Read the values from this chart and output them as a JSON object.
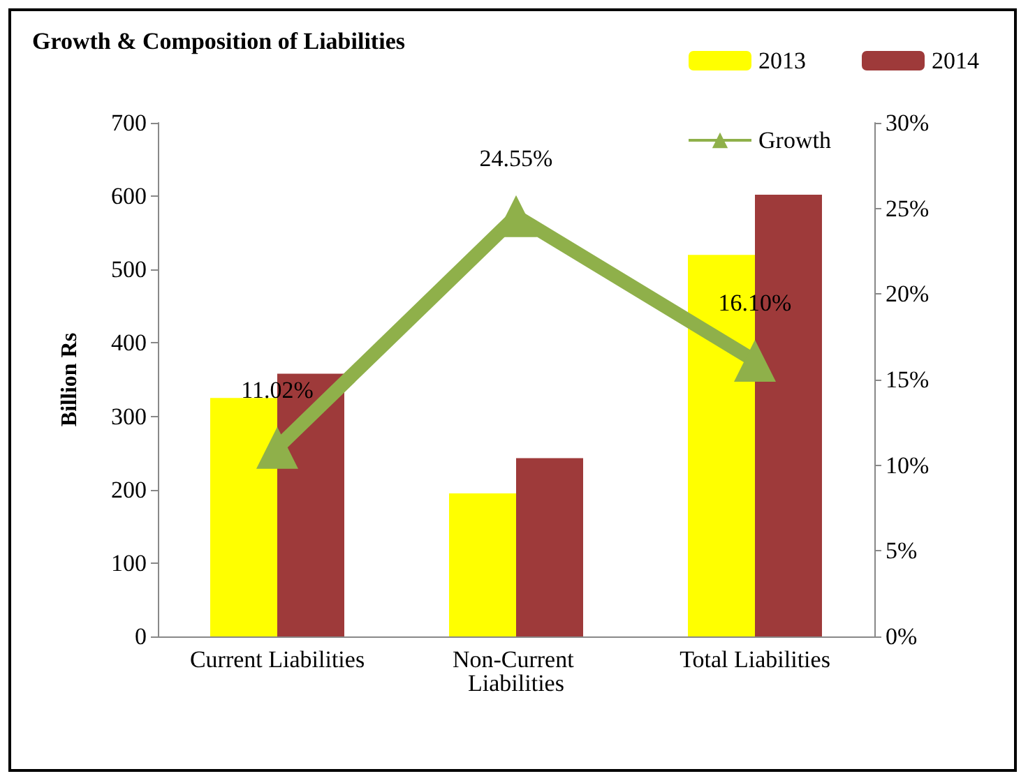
{
  "chart_data": {
    "type": "bar",
    "title": "Growth & Composition of Liabilities",
    "ylabel": "Billion Rs",
    "categories": [
      "Current Liabilities",
      "Non-Current Liabilities",
      "Total Liabilities"
    ],
    "series": [
      {
        "name": "2013",
        "color": "#ffff00",
        "values": [
          325,
          195,
          520
        ]
      },
      {
        "name": "2014",
        "color": "#9e3a3a",
        "values": [
          358,
          243,
          602
        ]
      },
      {
        "name": "Growth",
        "type": "line",
        "axis": "y2",
        "color": "#8fb04a",
        "marker": "triangle",
        "values": [
          11.02,
          24.55,
          16.1
        ],
        "value_labels": [
          "11.02%",
          "24.55%",
          "16.10%"
        ]
      }
    ],
    "ylim": [
      0,
      700
    ],
    "yticks": [
      0,
      100,
      200,
      300,
      400,
      500,
      600,
      700
    ],
    "y2lim": [
      0,
      30
    ],
    "y2ticks": [
      {
        "value": 0,
        "label": "0%"
      },
      {
        "value": 5,
        "label": "5%"
      },
      {
        "value": 10,
        "label": "10%"
      },
      {
        "value": 15,
        "label": "15%"
      },
      {
        "value": 20,
        "label": "20%"
      },
      {
        "value": 25,
        "label": "25%"
      },
      {
        "value": 30,
        "label": "30%"
      }
    ],
    "legend": "top right",
    "grid": false
  }
}
